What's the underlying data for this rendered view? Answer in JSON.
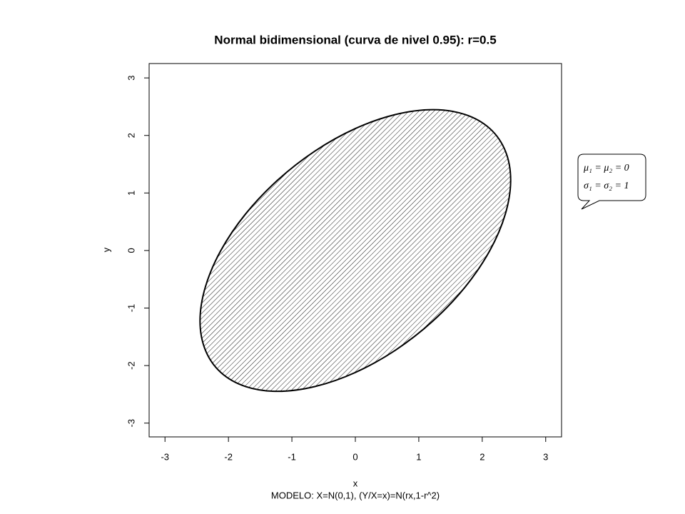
{
  "chart_data": {
    "type": "contour",
    "title": "Normal bidimensional (curva de nivel 0.95): r=0.5",
    "subtitle": "MODELO: X=N(0,1), (Y/X=x)=N(rx,1-r^2)",
    "xlabel": "x",
    "ylabel": "y",
    "x": [
      2.448,
      2.364,
      2.12,
      1.731,
      1.224,
      0.634,
      0,
      -0.634,
      -1.224,
      -1.731,
      -2.12,
      -2.364,
      -2.448,
      -2.364,
      -2.12,
      -1.731,
      -1.224,
      -0.634,
      0,
      0.634,
      1.224,
      1.731,
      2.12,
      2.364
    ],
    "y": [
      1.224,
      1.731,
      2.12,
      2.364,
      2.448,
      2.364,
      2.12,
      1.731,
      1.224,
      0.634,
      0,
      -0.634,
      -1.224,
      -1.731,
      -2.12,
      -2.364,
      -2.448,
      -2.364,
      -2.12,
      -1.731,
      -1.224,
      -0.634,
      0,
      0.634
    ],
    "xlim": [
      -3.25,
      3.25
    ],
    "ylim": [
      -3.24,
      3.25
    ],
    "xticks": [
      -3,
      -2,
      -1,
      0,
      1,
      2,
      3
    ],
    "yticks": [
      -3,
      -2,
      -1,
      0,
      1,
      2,
      3
    ],
    "color": "#000000",
    "hatch": true,
    "annotation": [
      "μ₁ = μ₂ = 0",
      "σ₁ = σ₂ = 1"
    ]
  }
}
